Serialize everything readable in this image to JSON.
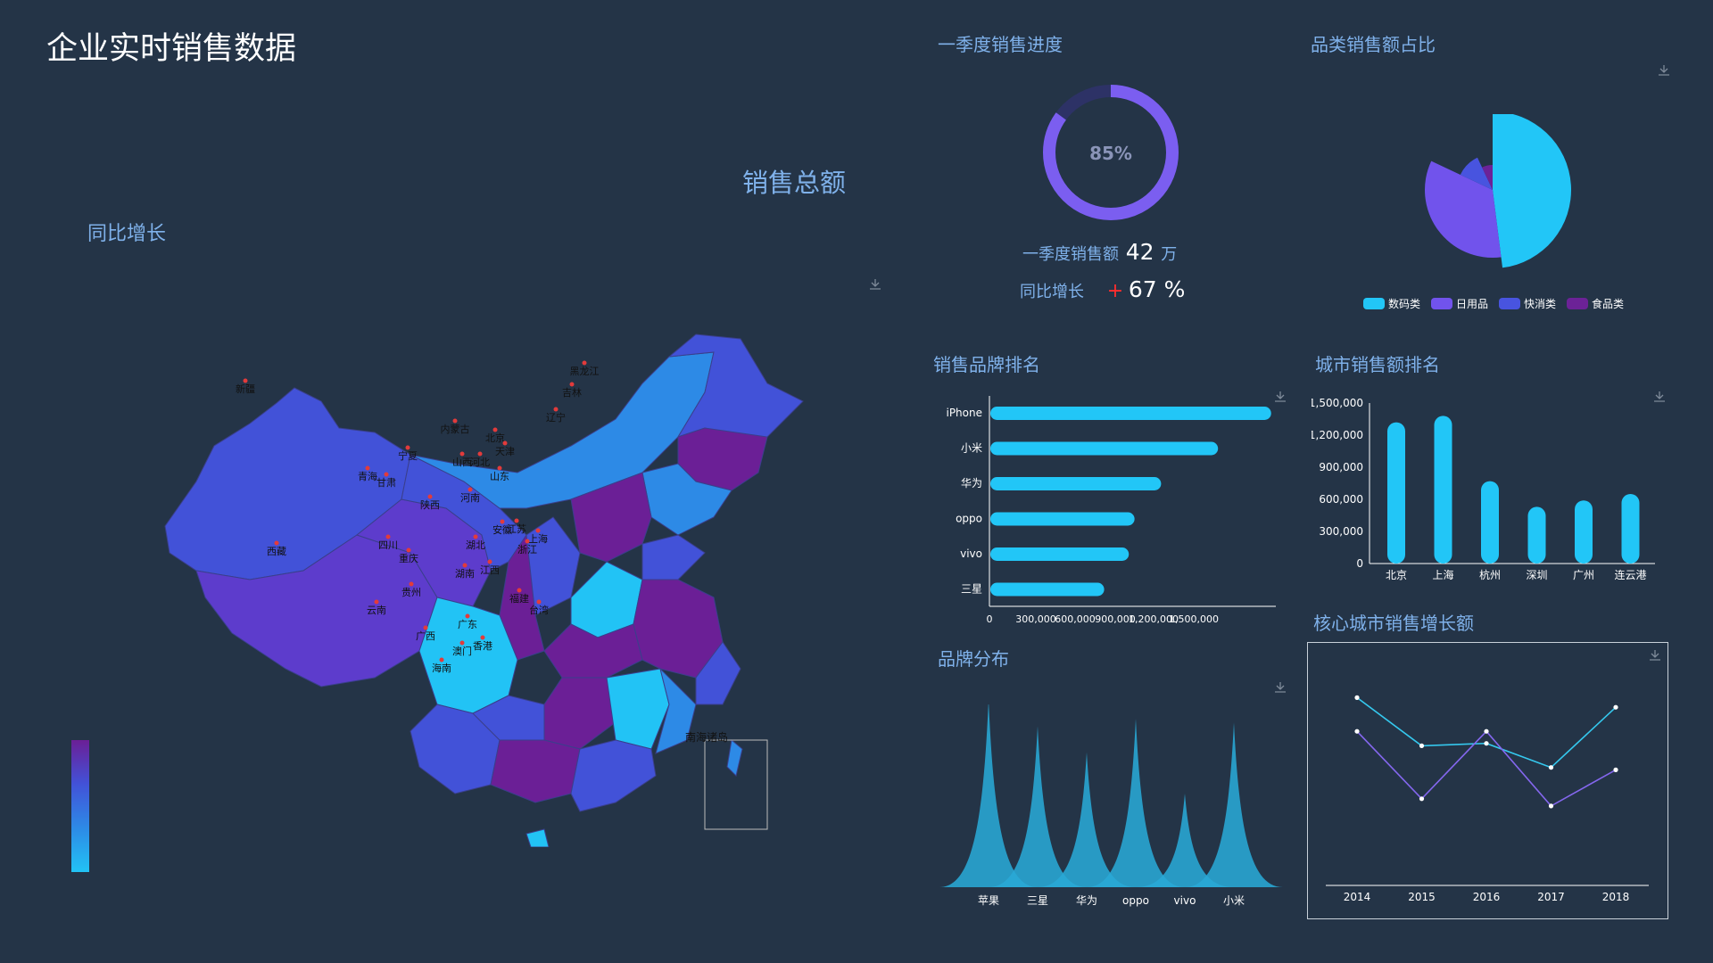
{
  "page_title": "企业实时销售数据",
  "left": {
    "sales_total_label": "销售总额",
    "yoy_label": "同比增长",
    "provinces": [
      "新疆",
      "西藏",
      "青海",
      "甘肃",
      "宁夏",
      "内蒙古",
      "黑龙江",
      "吉林",
      "辽宁",
      "北京",
      "天津",
      "河北",
      "山西",
      "山东",
      "河南",
      "陕西",
      "四川",
      "重庆",
      "云南",
      "贵州",
      "广西",
      "广东",
      "湖南",
      "湖北",
      "江西",
      "安徽",
      "江苏",
      "上海",
      "浙江",
      "福建",
      "台湾",
      "海南",
      "香港",
      "澳门"
    ],
    "south_sea_label": "南海诸岛",
    "colors": {
      "low": "#22c3f5",
      "mid1": "#2d8ae6",
      "mid2": "#4252d8",
      "mid3": "#5d3ccc",
      "high": "#6b1f96"
    }
  },
  "progress": {
    "title": "一季度销售进度",
    "percent": 85,
    "percent_text": "85%",
    "q1_sales_label": "一季度销售额",
    "q1_sales_value": "42",
    "q1_sales_unit": "万",
    "yoy_label": "同比增长",
    "yoy_sign": "+",
    "yoy_value": "67 %"
  },
  "category_share": {
    "title": "品类销售额占比",
    "chart_data": {
      "type": "pie",
      "categories": [
        "数码类",
        "日用品",
        "快消类",
        "食品类"
      ],
      "values": [
        48,
        34,
        11,
        7
      ],
      "colors": [
        "#22c6f7",
        "#7153ec",
        "#4854df",
        "#6c2297"
      ]
    }
  },
  "brand_rank": {
    "title": "销售品牌排名",
    "chart_data": {
      "type": "bar",
      "orientation": "horizontal",
      "categories": [
        "iPhone",
        "小米",
        "华为",
        "oppo",
        "vivo",
        "三星"
      ],
      "values": [
        1480000,
        1200000,
        900000,
        760000,
        730000,
        600000
      ],
      "xticks": [
        "0",
        "300,000",
        "600,000",
        "900,000",
        "1,200,000",
        "1,500,000"
      ],
      "xlim": [
        0,
        1500000
      ],
      "color": "#22c6f7"
    }
  },
  "city_rank": {
    "title": "城市销售额排名",
    "chart_data": {
      "type": "bar",
      "categories": [
        "北京",
        "上海",
        "杭州",
        "深圳",
        "广州",
        "连云港"
      ],
      "values": [
        1320000,
        1380000,
        770000,
        530000,
        590000,
        650000
      ],
      "yticks": [
        "0",
        "300,000",
        "600,000",
        "900,000",
        "1,200,000",
        "1,500,000"
      ],
      "ylim": [
        0,
        1500000
      ],
      "color": "#22c6f7"
    }
  },
  "brand_dist": {
    "title": "品牌分布",
    "chart_data": {
      "type": "area",
      "categories": [
        "苹果",
        "三星",
        "华为",
        "oppo",
        "vivo",
        "小米"
      ],
      "values": [
        100,
        86,
        72,
        90,
        50,
        88
      ],
      "color": "#29a9d6"
    }
  },
  "city_growth": {
    "title": "核心城市销售增长额",
    "chart_data": {
      "type": "line",
      "categories": [
        "2014",
        "2015",
        "2016",
        "2017",
        "2018"
      ],
      "series": [
        {
          "values": [
            78,
            58,
            59,
            49,
            74
          ],
          "color": "#35c8ee"
        },
        {
          "values": [
            64,
            36,
            64,
            33,
            48
          ],
          "color": "#8467ee"
        }
      ],
      "ylim": [
        0,
        100
      ]
    }
  }
}
